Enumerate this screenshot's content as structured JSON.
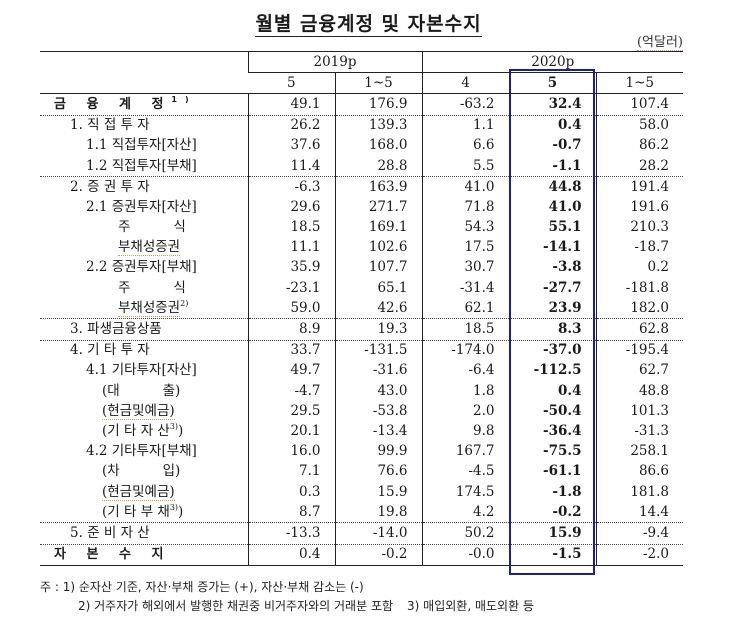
{
  "title": "월별 금융계정 및 자본수지",
  "unit": "(억달러)",
  "header": {
    "groups": [
      {
        "label": "2019p",
        "span": 2
      },
      {
        "label": "2020p",
        "span": 3
      }
    ],
    "columns": [
      "5",
      "1~5",
      "4",
      "5",
      "1~5"
    ],
    "highlight_column": 3,
    "highlight_color": "#1c1ca8"
  },
  "rows": [
    {
      "label": "금 융 계 정",
      "sup": "1)",
      "values": [
        "49.1",
        "176.9",
        "-63.2",
        "32.4",
        "107.4"
      ]
    },
    {
      "label": "1. 직 접 투 자",
      "values": [
        "26.2",
        "139.3",
        "1.1",
        "0.4",
        "58.0"
      ]
    },
    {
      "label": "1.1  직접투자[자산]",
      "values": [
        "37.6",
        "168.0",
        "6.6",
        "-0.7",
        "86.2"
      ]
    },
    {
      "label": "1.2  직접투자[부채]",
      "values": [
        "11.4",
        "28.8",
        "5.5",
        "-1.1",
        "28.2"
      ]
    },
    {
      "label": "2. 증 권 투 자",
      "values": [
        "-6.3",
        "163.9",
        "41.0",
        "44.8",
        "191.4"
      ]
    },
    {
      "label": "2.1  증권투자[자산]",
      "values": [
        "29.6",
        "271.7",
        "71.8",
        "41.0",
        "191.6"
      ]
    },
    {
      "label": "주          식",
      "values": [
        "18.5",
        "169.1",
        "54.3",
        "55.1",
        "210.3"
      ]
    },
    {
      "label": "부채성증권",
      "values": [
        "11.1",
        "102.6",
        "17.5",
        "-14.1",
        "-18.7"
      ]
    },
    {
      "label": "2.2  증권투자[부채]",
      "values": [
        "35.9",
        "107.7",
        "30.7",
        "-3.8",
        "0.2"
      ]
    },
    {
      "label": "주          식",
      "values": [
        "-23.1",
        "65.1",
        "-31.4",
        "-27.7",
        "-181.8"
      ]
    },
    {
      "label": "부채성증권",
      "sup": "2)",
      "values": [
        "59.0",
        "42.6",
        "62.1",
        "23.9",
        "182.0"
      ]
    },
    {
      "label": "3.  파생금융상품",
      "values": [
        "8.9",
        "19.3",
        "18.5",
        "8.3",
        "62.8"
      ]
    },
    {
      "label": "4. 기 타 투 자",
      "values": [
        "33.7",
        "-131.5",
        "-174.0",
        "-37.0",
        "-195.4"
      ]
    },
    {
      "label": "4.1  기타투자[자산]",
      "values": [
        "49.7",
        "-31.6",
        "-6.4",
        "-112.5",
        "62.7"
      ]
    },
    {
      "label": "(대          출)",
      "values": [
        "-4.7",
        "43.0",
        "1.8",
        "0.4",
        "48.8"
      ]
    },
    {
      "label": "(현금및예금)",
      "values": [
        "29.5",
        "-53.8",
        "2.0",
        "-50.4",
        "101.3"
      ]
    },
    {
      "label": "(기 타 자 산",
      "sup": "3)",
      "suffix": ")",
      "values": [
        "20.1",
        "-13.4",
        "9.8",
        "-36.4",
        "-31.3"
      ]
    },
    {
      "label": "4.2  기타투자[부채]",
      "values": [
        "16.0",
        "99.9",
        "167.7",
        "-75.5",
        "258.1"
      ]
    },
    {
      "label": "(차          입)",
      "values": [
        "7.1",
        "76.6",
        "-4.5",
        "-61.1",
        "86.6"
      ]
    },
    {
      "label": "(현금및예금)",
      "values": [
        "0.3",
        "15.9",
        "174.5",
        "-1.8",
        "181.8"
      ]
    },
    {
      "label": "(기 타 부 채",
      "sup": "3)",
      "suffix": ")",
      "values": [
        "8.7",
        "19.8",
        "4.2",
        "-0.2",
        "14.4"
      ]
    },
    {
      "label": "5. 준 비 자 산",
      "values": [
        "-13.3",
        "-14.0",
        "50.2",
        "15.9",
        "-9.4"
      ]
    },
    {
      "label": "자 본 수 지",
      "values": [
        "0.4",
        "-0.2",
        "-0.0",
        "-1.5",
        "-2.0"
      ]
    }
  ],
  "notes": {
    "line1": "주 : 1) 순자산 기준, 자산·부채 증가는 (+), 자산·부채 감소는 (-)",
    "line2a": "2) 거주자가 해외에서 발행한 채권중 비거주자와의 거래분 포함",
    "line2b": "3) 매입외환, 매도외환 등"
  }
}
